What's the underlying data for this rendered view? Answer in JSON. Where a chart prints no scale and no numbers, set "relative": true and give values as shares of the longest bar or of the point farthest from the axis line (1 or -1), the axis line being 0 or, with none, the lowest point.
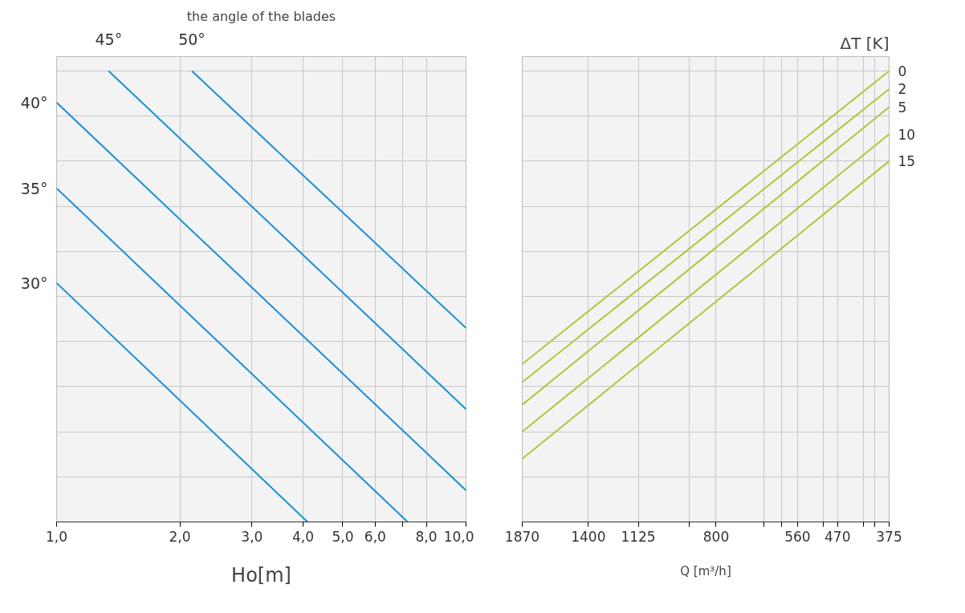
{
  "chart_data": [
    {
      "type": "line",
      "relative": true,
      "log": "x",
      "xlim": [
        1,
        10
      ],
      "grid": true,
      "xlabel": "Ho[m]",
      "xticks": [
        {
          "value": 1,
          "label": "1,0"
        },
        {
          "value": 2,
          "label": "2,0"
        },
        {
          "value": 3,
          "label": "3,0"
        },
        {
          "value": 4,
          "label": "4,0"
        },
        {
          "value": 5,
          "label": "5,0"
        },
        {
          "value": 6,
          "label": "6,0"
        },
        {
          "value": 7,
          "label": null
        },
        {
          "value": 8,
          "label": "8,0"
        },
        {
          "value": 10,
          "label": "10,0"
        }
      ],
      "annotations": [
        "the angle of the blades"
      ],
      "series": [
        {
          "name": "30°",
          "color": "#1a8fd6",
          "x": [
            1,
            4.1
          ],
          "values": [
            0.53,
            0
          ]
        },
        {
          "name": "35°",
          "color": "#1a8fd6",
          "x": [
            1,
            7.2
          ],
          "values": [
            0.74,
            0
          ]
        },
        {
          "name": "40°",
          "color": "#1a8fd6",
          "x": [
            1,
            10
          ],
          "values": [
            0.93,
            0.07
          ]
        },
        {
          "name": "45°",
          "color": "#1a8fd6",
          "x": [
            1.34,
            10
          ],
          "values": [
            1,
            0.25
          ]
        },
        {
          "name": "50°",
          "color": "#1a8fd6",
          "x": [
            2.14,
            10
          ],
          "values": [
            1,
            0.43
          ]
        }
      ]
    },
    {
      "type": "line",
      "relative": true,
      "log": "x",
      "xlim": [
        1870,
        375
      ],
      "grid": true,
      "xlabel": "Q [m³/h]",
      "legend_title": "ΔT [K]",
      "xticks": [
        1870,
        1400,
        1125,
        {
          "value": 900,
          "label": null
        },
        800,
        {
          "value": 650,
          "label": null
        },
        {
          "value": 600,
          "label": null
        },
        560,
        {
          "value": 500,
          "label": null
        },
        470,
        {
          "value": 420,
          "label": null
        },
        {
          "value": 400,
          "label": null
        },
        375
      ],
      "series": [
        {
          "name": "0",
          "color": "#a9c83a",
          "x": [
            1870,
            375
          ],
          "values": [
            0.35,
            1
          ]
        },
        {
          "name": "2",
          "color": "#a9c83a",
          "x": [
            1870,
            375
          ],
          "values": [
            0.31,
            0.96
          ]
        },
        {
          "name": "5",
          "color": "#a9c83a",
          "x": [
            1870,
            375
          ],
          "values": [
            0.26,
            0.92
          ]
        },
        {
          "name": "10",
          "color": "#a9c83a",
          "x": [
            1870,
            375
          ],
          "values": [
            0.2,
            0.86
          ]
        },
        {
          "name": "15",
          "color": "#a9c83a",
          "x": [
            1870,
            375
          ],
          "values": [
            0.14,
            0.8
          ]
        }
      ]
    }
  ]
}
